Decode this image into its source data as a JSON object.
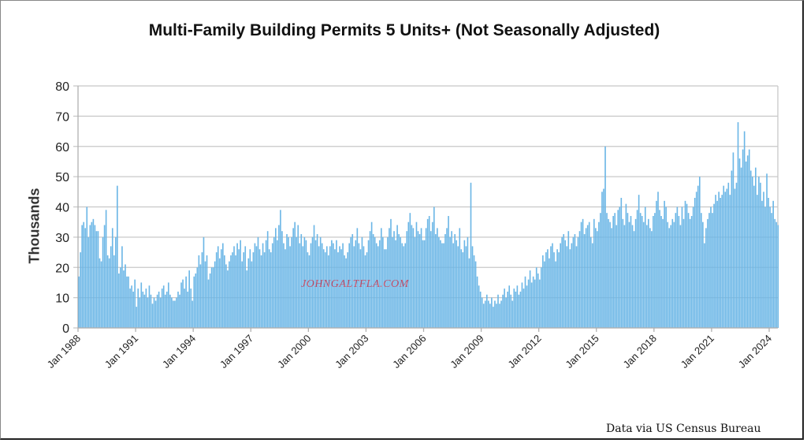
{
  "chart_data": {
    "type": "bar",
    "title": "Multi-Family Building Permits 5 Units+ (Not Seasonally Adjusted)",
    "xlabel": "",
    "ylabel": "Thousands",
    "ylim": [
      0,
      80
    ],
    "yticks": [
      "0",
      "10",
      "20",
      "30",
      "40",
      "50",
      "60",
      "70",
      "80"
    ],
    "xticks": [
      "Jan 1988",
      "Jan 1991",
      "Jan 1994",
      "Jan 1997",
      "Jan 2000",
      "Jan 2003",
      "Jan 2006",
      "Jan 2009",
      "Jan 2012",
      "Jan 2015",
      "Jan 2018",
      "Jan 2021",
      "Jan 2024"
    ],
    "start": "Jan 1988",
    "frequency": "monthly",
    "grid": true,
    "bar_color": "#6bb6e6",
    "values": [
      17,
      25,
      34,
      35,
      33,
      40,
      30,
      34,
      35,
      36,
      34,
      32,
      32,
      23,
      22,
      30,
      34,
      39,
      24,
      23,
      27,
      33,
      24,
      30,
      47,
      18,
      20,
      27,
      19,
      21,
      17,
      17,
      13,
      14,
      12,
      16,
      7,
      13,
      10,
      15,
      12,
      11,
      13,
      10,
      14,
      11,
      8,
      10,
      9,
      11,
      12,
      10,
      13,
      14,
      11,
      12,
      15,
      11,
      10,
      9,
      9,
      10,
      12,
      11,
      15,
      16,
      13,
      17,
      12,
      19,
      13,
      9,
      17,
      18,
      20,
      24,
      21,
      25,
      30,
      22,
      24,
      16,
      18,
      20,
      20,
      22,
      25,
      27,
      23,
      26,
      28,
      24,
      21,
      19,
      22,
      24,
      25,
      27,
      24,
      28,
      26,
      29,
      22,
      25,
      27,
      19,
      23,
      26,
      22,
      25,
      28,
      27,
      30,
      26,
      24,
      28,
      25,
      29,
      32,
      26,
      25,
      28,
      30,
      33,
      29,
      34,
      39,
      32,
      28,
      26,
      31,
      30,
      27,
      30,
      33,
      35,
      30,
      34,
      28,
      31,
      27,
      30,
      29,
      25,
      24,
      28,
      30,
      34,
      29,
      31,
      27,
      30,
      28,
      26,
      25,
      27,
      24,
      27,
      29,
      28,
      26,
      29,
      25,
      27,
      26,
      28,
      24,
      23,
      25,
      28,
      30,
      31,
      27,
      29,
      33,
      28,
      26,
      30,
      27,
      24,
      25,
      29,
      32,
      35,
      31,
      30,
      28,
      27,
      29,
      33,
      30,
      26,
      26,
      30,
      33,
      36,
      30,
      32,
      29,
      34,
      31,
      30,
      28,
      27,
      28,
      32,
      35,
      38,
      34,
      33,
      30,
      35,
      32,
      31,
      33,
      29,
      29,
      33,
      36,
      37,
      32,
      35,
      40,
      31,
      33,
      30,
      29,
      28,
      28,
      31,
      33,
      37,
      30,
      32,
      28,
      31,
      29,
      27,
      33,
      26,
      25,
      29,
      27,
      30,
      23,
      48,
      27,
      24,
      22,
      17,
      14,
      12,
      10,
      8,
      9,
      11,
      9,
      8,
      10,
      7,
      9,
      8,
      11,
      8,
      9,
      11,
      13,
      10,
      12,
      14,
      11,
      9,
      13,
      12,
      14,
      11,
      12,
      15,
      13,
      17,
      14,
      16,
      19,
      15,
      17,
      16,
      20,
      18,
      16,
      20,
      24,
      22,
      25,
      26,
      23,
      27,
      28,
      25,
      22,
      26,
      25,
      28,
      30,
      31,
      29,
      27,
      32,
      26,
      28,
      30,
      31,
      27,
      30,
      32,
      35,
      36,
      31,
      33,
      34,
      35,
      30,
      28,
      36,
      33,
      32,
      35,
      38,
      45,
      46,
      60,
      38,
      36,
      35,
      33,
      37,
      38,
      34,
      39,
      40,
      43,
      36,
      34,
      41,
      38,
      35,
      37,
      34,
      32,
      36,
      39,
      44,
      38,
      37,
      35,
      40,
      34,
      36,
      33,
      32,
      37,
      38,
      42,
      45,
      39,
      37,
      36,
      42,
      40,
      35,
      33,
      34,
      36,
      35,
      38,
      40,
      37,
      34,
      40,
      36,
      42,
      41,
      38,
      36,
      37,
      40,
      43,
      45,
      47,
      50,
      38,
      35,
      28,
      33,
      36,
      38,
      40,
      38,
      41,
      44,
      42,
      45,
      43,
      44,
      47,
      45,
      46,
      48,
      44,
      52,
      58,
      46,
      48,
      68,
      56,
      53,
      59,
      65,
      55,
      57,
      59,
      52,
      50,
      47,
      53,
      44,
      50,
      48,
      42,
      45,
      40,
      51,
      43,
      40,
      38,
      42,
      36,
      35,
      34
    ]
  },
  "watermark": "JOHNGALTFLA.COM",
  "source": "Data via US Census Bureau"
}
